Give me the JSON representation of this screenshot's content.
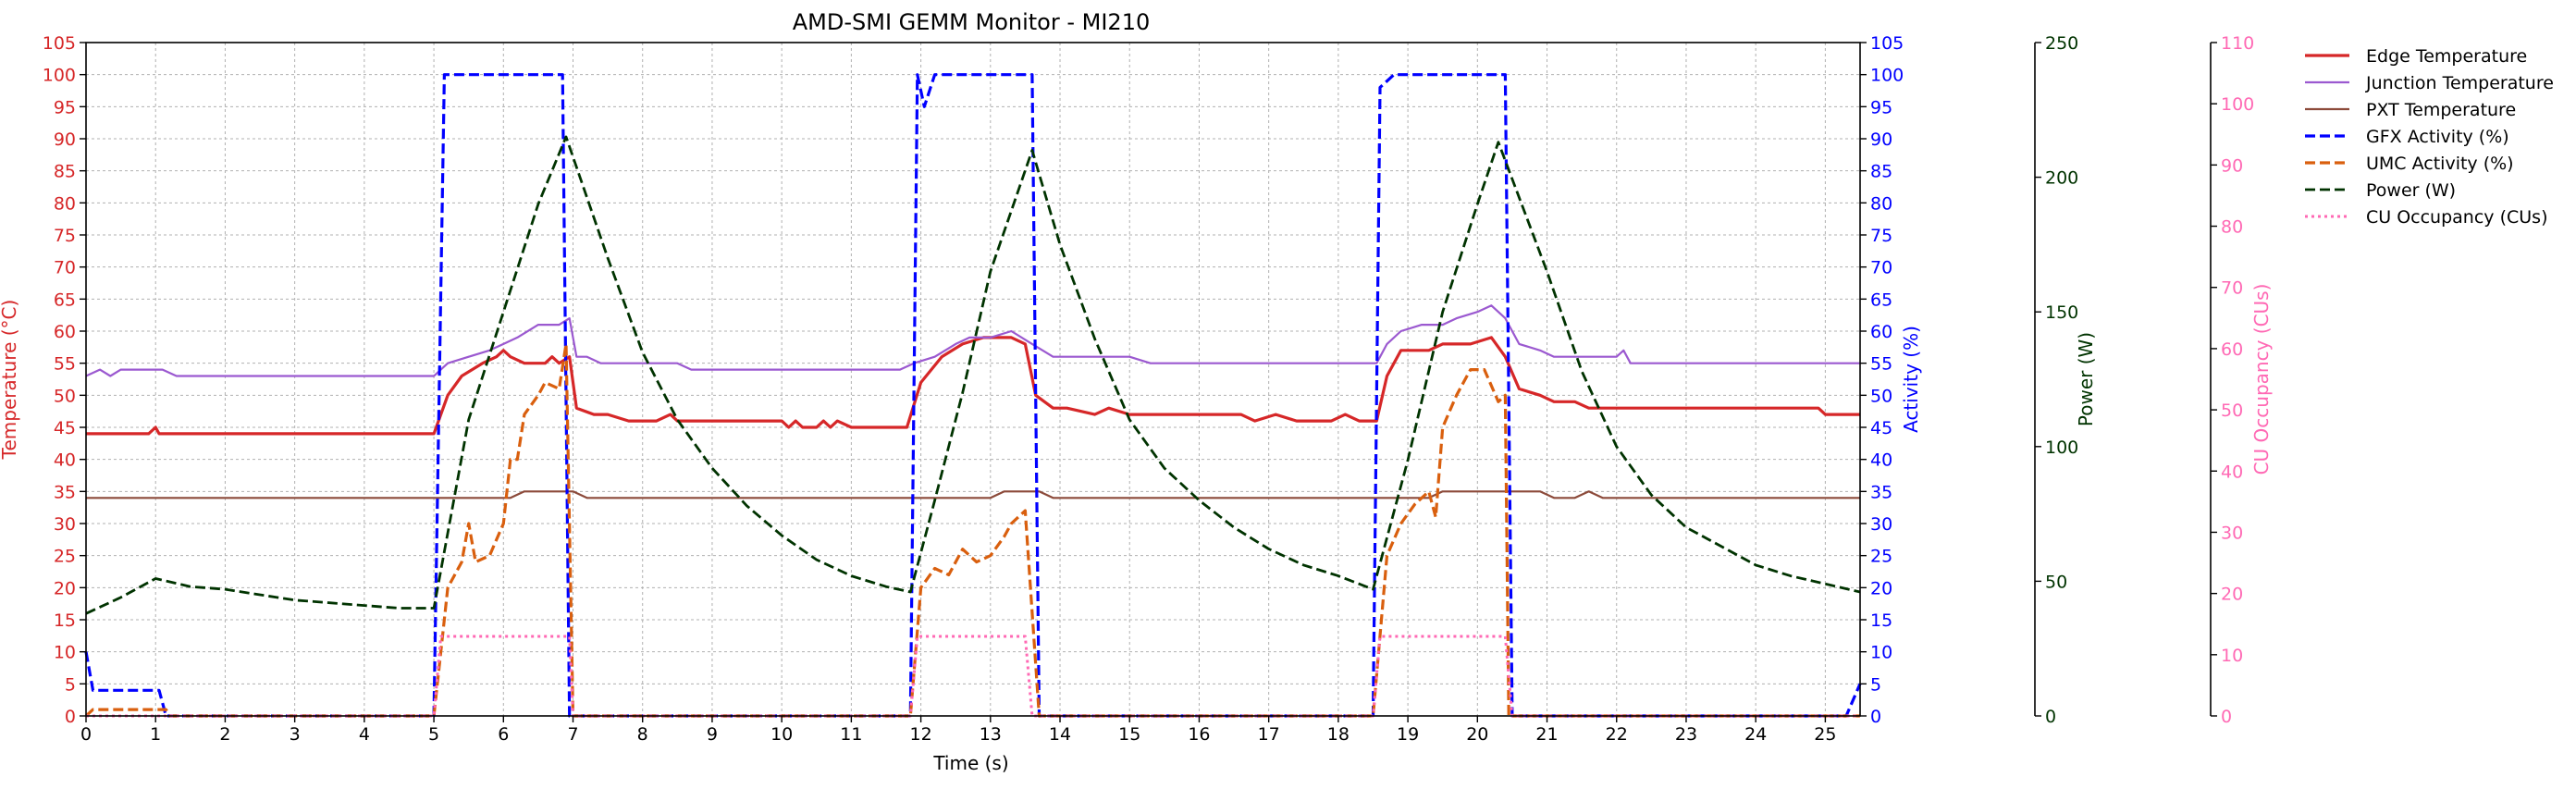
{
  "chart_data": {
    "type": "line",
    "title": "AMD-SMI GEMM Monitor - MI210",
    "xlabel": "Time (s)",
    "xlim": [
      0,
      25.5
    ],
    "x_ticks": [
      "0",
      "1",
      "2",
      "3",
      "4",
      "5",
      "6",
      "7",
      "8",
      "9",
      "10",
      "11",
      "12",
      "13",
      "14",
      "15",
      "16",
      "17",
      "18",
      "19",
      "20",
      "21",
      "22",
      "23",
      "24",
      "25"
    ],
    "grid": true,
    "legend_position": "upper-right-outside",
    "axes": [
      {
        "id": "temp",
        "side": "left",
        "label": "Temperature (°C)",
        "ylim": [
          0,
          105
        ],
        "step": 5,
        "color": "#d62728"
      },
      {
        "id": "activity",
        "side": "right",
        "label": "Activity (%)",
        "ylim": [
          0,
          105
        ],
        "step": 5,
        "color": "#0000ff"
      },
      {
        "id": "power",
        "side": "right",
        "label": "Power (W)",
        "ylim": [
          0,
          250
        ],
        "step": 50,
        "color": "#003300"
      },
      {
        "id": "cu",
        "side": "right",
        "label": "CU Occupancy (CUs)",
        "ylim": [
          0,
          110
        ],
        "step": 10,
        "color": "#ff69b4"
      }
    ],
    "series": [
      {
        "name": "Edge Temperature",
        "axis": "temp",
        "color": "#d62728",
        "style": "solid",
        "width": 3.2,
        "points": [
          [
            0,
            44
          ],
          [
            0.9,
            44
          ],
          [
            1.0,
            45
          ],
          [
            1.05,
            44
          ],
          [
            5.0,
            44
          ],
          [
            5.2,
            50
          ],
          [
            5.4,
            53
          ],
          [
            5.7,
            55
          ],
          [
            5.9,
            56
          ],
          [
            6.0,
            57
          ],
          [
            6.1,
            56
          ],
          [
            6.3,
            55
          ],
          [
            6.6,
            55
          ],
          [
            6.7,
            56
          ],
          [
            6.8,
            55
          ],
          [
            6.95,
            56
          ],
          [
            7.05,
            48
          ],
          [
            7.3,
            47
          ],
          [
            7.5,
            47
          ],
          [
            7.8,
            46
          ],
          [
            8.2,
            46
          ],
          [
            8.4,
            47
          ],
          [
            8.5,
            46
          ],
          [
            10.0,
            46
          ],
          [
            10.1,
            45
          ],
          [
            10.2,
            46
          ],
          [
            10.3,
            45
          ],
          [
            10.5,
            45
          ],
          [
            10.6,
            46
          ],
          [
            10.7,
            45
          ],
          [
            10.8,
            46
          ],
          [
            11.0,
            45
          ],
          [
            11.6,
            45
          ],
          [
            11.8,
            45
          ],
          [
            12.0,
            52
          ],
          [
            12.3,
            56
          ],
          [
            12.6,
            58
          ],
          [
            12.9,
            59
          ],
          [
            13.3,
            59
          ],
          [
            13.5,
            58
          ],
          [
            13.65,
            50
          ],
          [
            13.9,
            48
          ],
          [
            14.1,
            48
          ],
          [
            14.5,
            47
          ],
          [
            14.7,
            48
          ],
          [
            15.0,
            47
          ],
          [
            16.6,
            47
          ],
          [
            16.8,
            46
          ],
          [
            17.1,
            47
          ],
          [
            17.4,
            46
          ],
          [
            17.9,
            46
          ],
          [
            18.1,
            47
          ],
          [
            18.3,
            46
          ],
          [
            18.55,
            46
          ],
          [
            18.7,
            53
          ],
          [
            18.9,
            57
          ],
          [
            19.3,
            57
          ],
          [
            19.5,
            58
          ],
          [
            19.7,
            58
          ],
          [
            19.9,
            58
          ],
          [
            20.2,
            59
          ],
          [
            20.4,
            56
          ],
          [
            20.6,
            51
          ],
          [
            20.9,
            50
          ],
          [
            21.1,
            49
          ],
          [
            21.4,
            49
          ],
          [
            21.6,
            48
          ],
          [
            22.0,
            48
          ],
          [
            24.9,
            48
          ],
          [
            25.0,
            47
          ],
          [
            25.5,
            47
          ]
        ]
      },
      {
        "name": "Junction Temperature",
        "axis": "temp",
        "color": "#9b59d0",
        "style": "solid",
        "width": 2.2,
        "points": [
          [
            0,
            53
          ],
          [
            0.2,
            54
          ],
          [
            0.35,
            53
          ],
          [
            0.5,
            54
          ],
          [
            1.1,
            54
          ],
          [
            1.3,
            53
          ],
          [
            5.0,
            53
          ],
          [
            5.2,
            55
          ],
          [
            5.5,
            56
          ],
          [
            5.8,
            57
          ],
          [
            6.0,
            58
          ],
          [
            6.2,
            59
          ],
          [
            6.5,
            61
          ],
          [
            6.8,
            61
          ],
          [
            6.95,
            62
          ],
          [
            7.05,
            56
          ],
          [
            7.2,
            56
          ],
          [
            7.4,
            55
          ],
          [
            8.5,
            55
          ],
          [
            8.7,
            54
          ],
          [
            9.0,
            54
          ],
          [
            11.7,
            54
          ],
          [
            11.9,
            55
          ],
          [
            12.2,
            56
          ],
          [
            12.5,
            58
          ],
          [
            12.7,
            59
          ],
          [
            13.0,
            59
          ],
          [
            13.3,
            60
          ],
          [
            13.6,
            58
          ],
          [
            13.9,
            56
          ],
          [
            15.0,
            56
          ],
          [
            15.3,
            55
          ],
          [
            15.9,
            55
          ],
          [
            16.1,
            55
          ],
          [
            16.5,
            55
          ],
          [
            18.55,
            55
          ],
          [
            18.7,
            58
          ],
          [
            18.9,
            60
          ],
          [
            19.2,
            61
          ],
          [
            19.5,
            61
          ],
          [
            19.7,
            62
          ],
          [
            20.0,
            63
          ],
          [
            20.2,
            64
          ],
          [
            20.4,
            62
          ],
          [
            20.6,
            58
          ],
          [
            20.9,
            57
          ],
          [
            21.1,
            56
          ],
          [
            22.0,
            56
          ],
          [
            22.1,
            57
          ],
          [
            22.2,
            55
          ],
          [
            25.5,
            55
          ]
        ]
      },
      {
        "name": "PXT Temperature",
        "axis": "temp",
        "color": "#8c4a3a",
        "style": "solid",
        "width": 2.2,
        "points": [
          [
            0,
            34
          ],
          [
            6.1,
            34
          ],
          [
            6.3,
            35
          ],
          [
            7.0,
            35
          ],
          [
            7.2,
            34
          ],
          [
            13.0,
            34
          ],
          [
            13.2,
            35
          ],
          [
            13.7,
            35
          ],
          [
            13.9,
            34
          ],
          [
            19.3,
            34
          ],
          [
            19.5,
            35
          ],
          [
            20.9,
            35
          ],
          [
            21.1,
            34
          ],
          [
            21.4,
            34
          ],
          [
            21.6,
            35
          ],
          [
            21.8,
            34
          ],
          [
            25.5,
            34
          ]
        ]
      },
      {
        "name": "GFX Activity (%)",
        "axis": "activity",
        "color": "#0000ff",
        "style": "dashed",
        "width": 3.2,
        "points": [
          [
            0,
            10
          ],
          [
            0.1,
            4
          ],
          [
            1.05,
            4
          ],
          [
            1.15,
            0
          ],
          [
            5.0,
            0
          ],
          [
            5.15,
            100
          ],
          [
            6.85,
            100
          ],
          [
            6.95,
            0
          ],
          [
            11.85,
            0
          ],
          [
            11.95,
            100
          ],
          [
            12.05,
            95
          ],
          [
            12.2,
            100
          ],
          [
            13.6,
            100
          ],
          [
            13.7,
            0
          ],
          [
            18.5,
            0
          ],
          [
            18.6,
            98
          ],
          [
            18.8,
            100
          ],
          [
            20.4,
            100
          ],
          [
            20.5,
            0
          ],
          [
            25.3,
            0
          ],
          [
            25.5,
            5
          ]
        ]
      },
      {
        "name": "UMC Activity (%)",
        "axis": "activity",
        "color": "#d95f0e",
        "style": "dashed",
        "width": 3.2,
        "points": [
          [
            0,
            0
          ],
          [
            0.1,
            1
          ],
          [
            1.15,
            1
          ],
          [
            1.2,
            0
          ],
          [
            5.0,
            0
          ],
          [
            5.2,
            20
          ],
          [
            5.4,
            24
          ],
          [
            5.5,
            30
          ],
          [
            5.6,
            24
          ],
          [
            5.8,
            25
          ],
          [
            6.0,
            30
          ],
          [
            6.1,
            40
          ],
          [
            6.2,
            40
          ],
          [
            6.3,
            47
          ],
          [
            6.5,
            50
          ],
          [
            6.6,
            52
          ],
          [
            6.8,
            51
          ],
          [
            6.9,
            58
          ],
          [
            7.0,
            0
          ],
          [
            11.85,
            0
          ],
          [
            12.0,
            20
          ],
          [
            12.2,
            23
          ],
          [
            12.4,
            22
          ],
          [
            12.6,
            26
          ],
          [
            12.8,
            24
          ],
          [
            13.0,
            25
          ],
          [
            13.2,
            28
          ],
          [
            13.3,
            30
          ],
          [
            13.5,
            32
          ],
          [
            13.7,
            0
          ],
          [
            18.5,
            0
          ],
          [
            18.7,
            25
          ],
          [
            18.9,
            30
          ],
          [
            19.1,
            33
          ],
          [
            19.3,
            35
          ],
          [
            19.4,
            31
          ],
          [
            19.5,
            45
          ],
          [
            19.7,
            50
          ],
          [
            19.9,
            54
          ],
          [
            20.1,
            54
          ],
          [
            20.3,
            49
          ],
          [
            20.4,
            50
          ],
          [
            20.45,
            0
          ],
          [
            25.5,
            0
          ]
        ]
      },
      {
        "name": "Power (W)",
        "axis": "power",
        "color": "#003300",
        "style": "dashed",
        "width": 2.8,
        "points": [
          [
            0,
            38
          ],
          [
            0.5,
            44
          ],
          [
            1.0,
            51
          ],
          [
            1.5,
            48
          ],
          [
            2.0,
            47
          ],
          [
            2.5,
            45
          ],
          [
            3.0,
            43
          ],
          [
            3.5,
            42
          ],
          [
            4.0,
            41
          ],
          [
            4.5,
            40
          ],
          [
            5.0,
            40
          ],
          [
            5.5,
            110
          ],
          [
            6.0,
            150
          ],
          [
            6.5,
            190
          ],
          [
            6.9,
            215
          ],
          [
            7.5,
            170
          ],
          [
            8.0,
            135
          ],
          [
            8.5,
            110
          ],
          [
            9.0,
            92
          ],
          [
            9.5,
            78
          ],
          [
            10.0,
            67
          ],
          [
            10.5,
            58
          ],
          [
            11.0,
            52
          ],
          [
            11.5,
            48
          ],
          [
            11.85,
            46
          ],
          [
            12.2,
            80
          ],
          [
            12.6,
            120
          ],
          [
            13.0,
            165
          ],
          [
            13.6,
            210
          ],
          [
            14.0,
            175
          ],
          [
            14.5,
            140
          ],
          [
            15.0,
            110
          ],
          [
            15.5,
            92
          ],
          [
            16.0,
            80
          ],
          [
            16.5,
            70
          ],
          [
            17.0,
            62
          ],
          [
            17.5,
            56
          ],
          [
            18.0,
            52
          ],
          [
            18.5,
            47
          ],
          [
            19.0,
            95
          ],
          [
            19.5,
            150
          ],
          [
            20.0,
            190
          ],
          [
            20.3,
            213
          ],
          [
            21.0,
            165
          ],
          [
            21.5,
            128
          ],
          [
            22.0,
            100
          ],
          [
            22.5,
            82
          ],
          [
            23.0,
            70
          ],
          [
            23.5,
            63
          ],
          [
            24.0,
            56
          ],
          [
            24.5,
            52
          ],
          [
            25.0,
            49
          ],
          [
            25.5,
            46
          ]
        ]
      },
      {
        "name": "CU Occupancy (CUs)",
        "axis": "cu",
        "color": "#ff69b4",
        "style": "dotted",
        "width": 3.0,
        "points": [
          [
            0,
            0
          ],
          [
            5.0,
            0
          ],
          [
            5.1,
            13
          ],
          [
            6.95,
            13
          ],
          [
            7.0,
            0
          ],
          [
            11.85,
            0
          ],
          [
            11.95,
            13
          ],
          [
            13.5,
            13
          ],
          [
            13.6,
            0
          ],
          [
            18.5,
            0
          ],
          [
            18.6,
            13
          ],
          [
            20.4,
            13
          ],
          [
            20.5,
            0
          ],
          [
            25.5,
            0
          ]
        ]
      }
    ]
  }
}
